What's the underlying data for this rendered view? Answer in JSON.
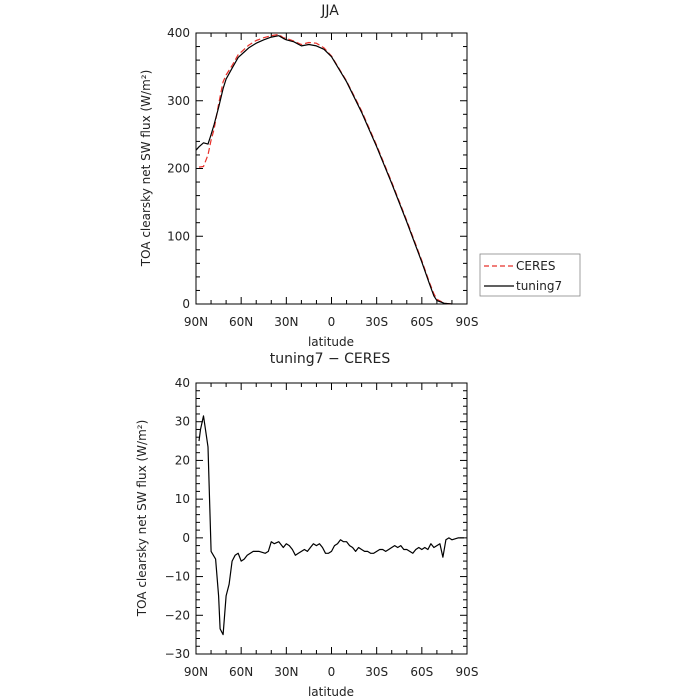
{
  "chart_data": [
    {
      "type": "line",
      "title": "JJA",
      "xlabel": "latitude",
      "ylabel": "TOA clearsky net SW flux (W/m²)",
      "xlim": [
        90,
        -90
      ],
      "ylim": [
        0,
        400
      ],
      "xticks": [
        90,
        60,
        30,
        0,
        -30,
        -60,
        -90
      ],
      "xtick_labels": [
        "90N",
        "60N",
        "30N",
        "0",
        "30S",
        "60S",
        "90S"
      ],
      "yticks": [
        0,
        100,
        200,
        300,
        400
      ],
      "ytick_labels": [
        "0",
        "100",
        "200",
        "300",
        "400"
      ],
      "legend": {
        "position": "right",
        "entries": [
          "CERES",
          "tuning7"
        ]
      },
      "series": [
        {
          "name": "CERES",
          "color": "#e8302a",
          "dash": "dashed",
          "x": [
            88,
            85,
            82,
            80,
            78,
            75,
            72,
            70,
            66,
            62,
            58,
            55,
            50,
            45,
            40,
            35,
            32,
            30,
            25,
            20,
            15,
            10,
            5,
            0,
            -10,
            -20,
            -30,
            -40,
            -50,
            -60,
            -65,
            -68,
            -70,
            -75,
            -80
          ],
          "y": [
            202,
            203,
            220,
            242,
            258,
            295,
            328,
            338,
            352,
            368,
            376,
            382,
            389,
            393,
            396,
            398,
            393,
            392,
            388,
            383,
            386,
            385,
            378,
            366,
            329,
            285,
            234,
            180,
            123,
            64,
            32,
            15,
            7,
            1,
            0
          ]
        },
        {
          "name": "tuning7",
          "color": "#000000",
          "dash": "solid",
          "x": [
            90,
            88,
            85,
            82,
            80,
            78,
            75,
            72,
            70,
            66,
            62,
            58,
            55,
            50,
            45,
            40,
            35,
            32,
            30,
            25,
            20,
            15,
            10,
            5,
            0,
            -10,
            -20,
            -30,
            -40,
            -50,
            -60,
            -65,
            -68,
            -70,
            -75,
            -80
          ],
          "y": [
            227,
            232,
            238,
            236,
            250,
            265,
            290,
            318,
            332,
            348,
            364,
            372,
            378,
            385,
            390,
            394,
            396,
            392,
            390,
            387,
            381,
            383,
            381,
            376,
            365,
            328,
            283,
            232,
            178,
            121,
            62,
            30,
            12,
            5,
            1,
            0
          ]
        }
      ]
    },
    {
      "type": "line",
      "title": "tuning7 − CERES",
      "xlabel": "latitude",
      "ylabel": "TOA clearsky net SW flux (W/m²)",
      "xlim": [
        90,
        -90
      ],
      "ylim": [
        -30,
        40
      ],
      "xticks": [
        90,
        60,
        30,
        0,
        -30,
        -60,
        -90
      ],
      "xtick_labels": [
        "90N",
        "60N",
        "30N",
        "0",
        "30S",
        "60S",
        "90S"
      ],
      "yticks": [
        -30,
        -20,
        -10,
        0,
        10,
        20,
        30,
        40
      ],
      "ytick_labels": [
        "−30",
        "−20",
        "−10",
        "0",
        "10",
        "20",
        "30",
        "40"
      ],
      "series": [
        {
          "name": "",
          "color": "#000000",
          "dash": "solid",
          "x": [
            88,
            87,
            85,
            82,
            80,
            77,
            75,
            74,
            72,
            70,
            68,
            66,
            64,
            62,
            60,
            58,
            56,
            52,
            48,
            44,
            42,
            40,
            38,
            35,
            32,
            30,
            28,
            26,
            24,
            22,
            20,
            18,
            16,
            14,
            12,
            10,
            8,
            6,
            4,
            2,
            0,
            -2,
            -4,
            -6,
            -8,
            -10,
            -12,
            -14,
            -16,
            -18,
            -20,
            -22,
            -24,
            -26,
            -28,
            -30,
            -32,
            -34,
            -36,
            -38,
            -40,
            -42,
            -44,
            -46,
            -48,
            -50,
            -52,
            -54,
            -56,
            -58,
            -60,
            -62,
            -64,
            -66,
            -68,
            -70,
            -72,
            -74,
            -76,
            -78,
            -80,
            -84,
            -88
          ],
          "y": [
            25,
            28,
            31.5,
            23.5,
            -3.5,
            -5.5,
            -15,
            -23.5,
            -25,
            -15,
            -12,
            -6,
            -4.5,
            -4,
            -6,
            -5.5,
            -4.5,
            -3.5,
            -3.5,
            -4,
            -3.5,
            -1,
            -1.5,
            -1,
            -2.5,
            -1.5,
            -2,
            -3,
            -4.5,
            -4,
            -3.5,
            -3,
            -3.5,
            -2.5,
            -1.5,
            -2,
            -1.5,
            -2.5,
            -4,
            -4,
            -3.5,
            -2,
            -1.5,
            -0.5,
            -1,
            -1,
            -2,
            -2.5,
            -3.5,
            -2.5,
            -3,
            -3.5,
            -3.5,
            -4,
            -4,
            -3.5,
            -3,
            -3,
            -3.5,
            -3,
            -2.5,
            -2,
            -2.5,
            -2,
            -3,
            -3,
            -3.5,
            -4,
            -3,
            -2.5,
            -3,
            -2.5,
            -3,
            -1.5,
            -2.5,
            -2,
            -1.5,
            -5,
            -0.5,
            0,
            -0.5,
            0,
            0
          ]
        }
      ]
    }
  ]
}
